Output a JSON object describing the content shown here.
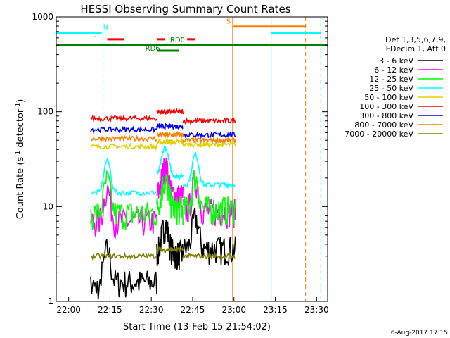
{
  "chart_data": {
    "type": "line",
    "title": "HESSI Observing Summary Count Rates",
    "xlabel": "Start Time (13-Feb-15 21:54:02)",
    "ylabel_main": "Count Rate (s",
    "ylabel_sup1": "-1",
    "ylabel_mid": " detector",
    "ylabel_sup2": "-1",
    "ylabel_end": ")",
    "footer_date": "6-Aug-2017 17:15",
    "yscale": "log",
    "ylim": [
      1,
      1000
    ],
    "xlim_minutes": [
      -4.5,
      34.0
    ],
    "x_ticks": [
      {
        "m": 0,
        "label": "22:00"
      },
      {
        "m": 15,
        "label": "22:15"
      },
      {
        "m": 30,
        "label": "22:30"
      },
      {
        "m": 45,
        "label": "22:45"
      },
      {
        "m": 60,
        "label": "23:00"
      },
      {
        "m": 75,
        "label": "23:15"
      },
      {
        "m": 90,
        "label": "23:30"
      }
    ],
    "y_ticks": [
      {
        "v": 1,
        "label": "1"
      },
      {
        "v": 10,
        "label": "10"
      },
      {
        "v": 100,
        "label": "100"
      },
      {
        "v": 1000,
        "label": "1000"
      }
    ],
    "legend_header": [
      "Det 1,3,5,6,7,9,",
      "FDecim 1, Att 0"
    ],
    "series": [
      {
        "name": "3 - 6 keV",
        "color": "#000000",
        "seg": [
          [
            1.6,
            3.2,
            3.6
          ]
        ]
      },
      {
        "name": "6 - 12 keV",
        "color": "#ff00ff",
        "seg": [
          [
            7,
            13,
            9
          ]
        ]
      },
      {
        "name": "12 - 25 keV",
        "color": "#00ff00",
        "seg": [
          [
            8.5,
            9.5,
            9.5
          ]
        ]
      },
      {
        "name": "25 - 50 keV",
        "color": "#00ffff",
        "seg": [
          [
            14,
            21,
            17
          ]
        ]
      },
      {
        "name": "50 - 100 keV",
        "color": "#e0d000",
        "seg": [
          [
            43,
            48,
            45
          ]
        ]
      },
      {
        "name": "100 - 300 keV",
        "color": "#ff0000",
        "seg": [
          [
            85,
            100,
            80
          ]
        ]
      },
      {
        "name": "300 - 800 keV",
        "color": "#0000ff",
        "seg": [
          [
            65,
            70,
            57
          ]
        ]
      },
      {
        "name": "800 - 7000 keV",
        "color": "#ff8000",
        "seg": [
          [
            52,
            57,
            50
          ]
        ]
      },
      {
        "name": "7000 - 20000 keV",
        "color": "#808000",
        "seg": [
          [
            3,
            3.5,
            3
          ]
        ]
      }
    ],
    "flags": [
      {
        "label": "N",
        "color": "#00ffff"
      },
      {
        "label": "F",
        "color": "#ff0000"
      },
      {
        "label": "RD0",
        "color": "#008000"
      },
      {
        "label": "RD6",
        "color": "#008000"
      },
      {
        "label": "S",
        "color": "#ff8000"
      }
    ]
  }
}
